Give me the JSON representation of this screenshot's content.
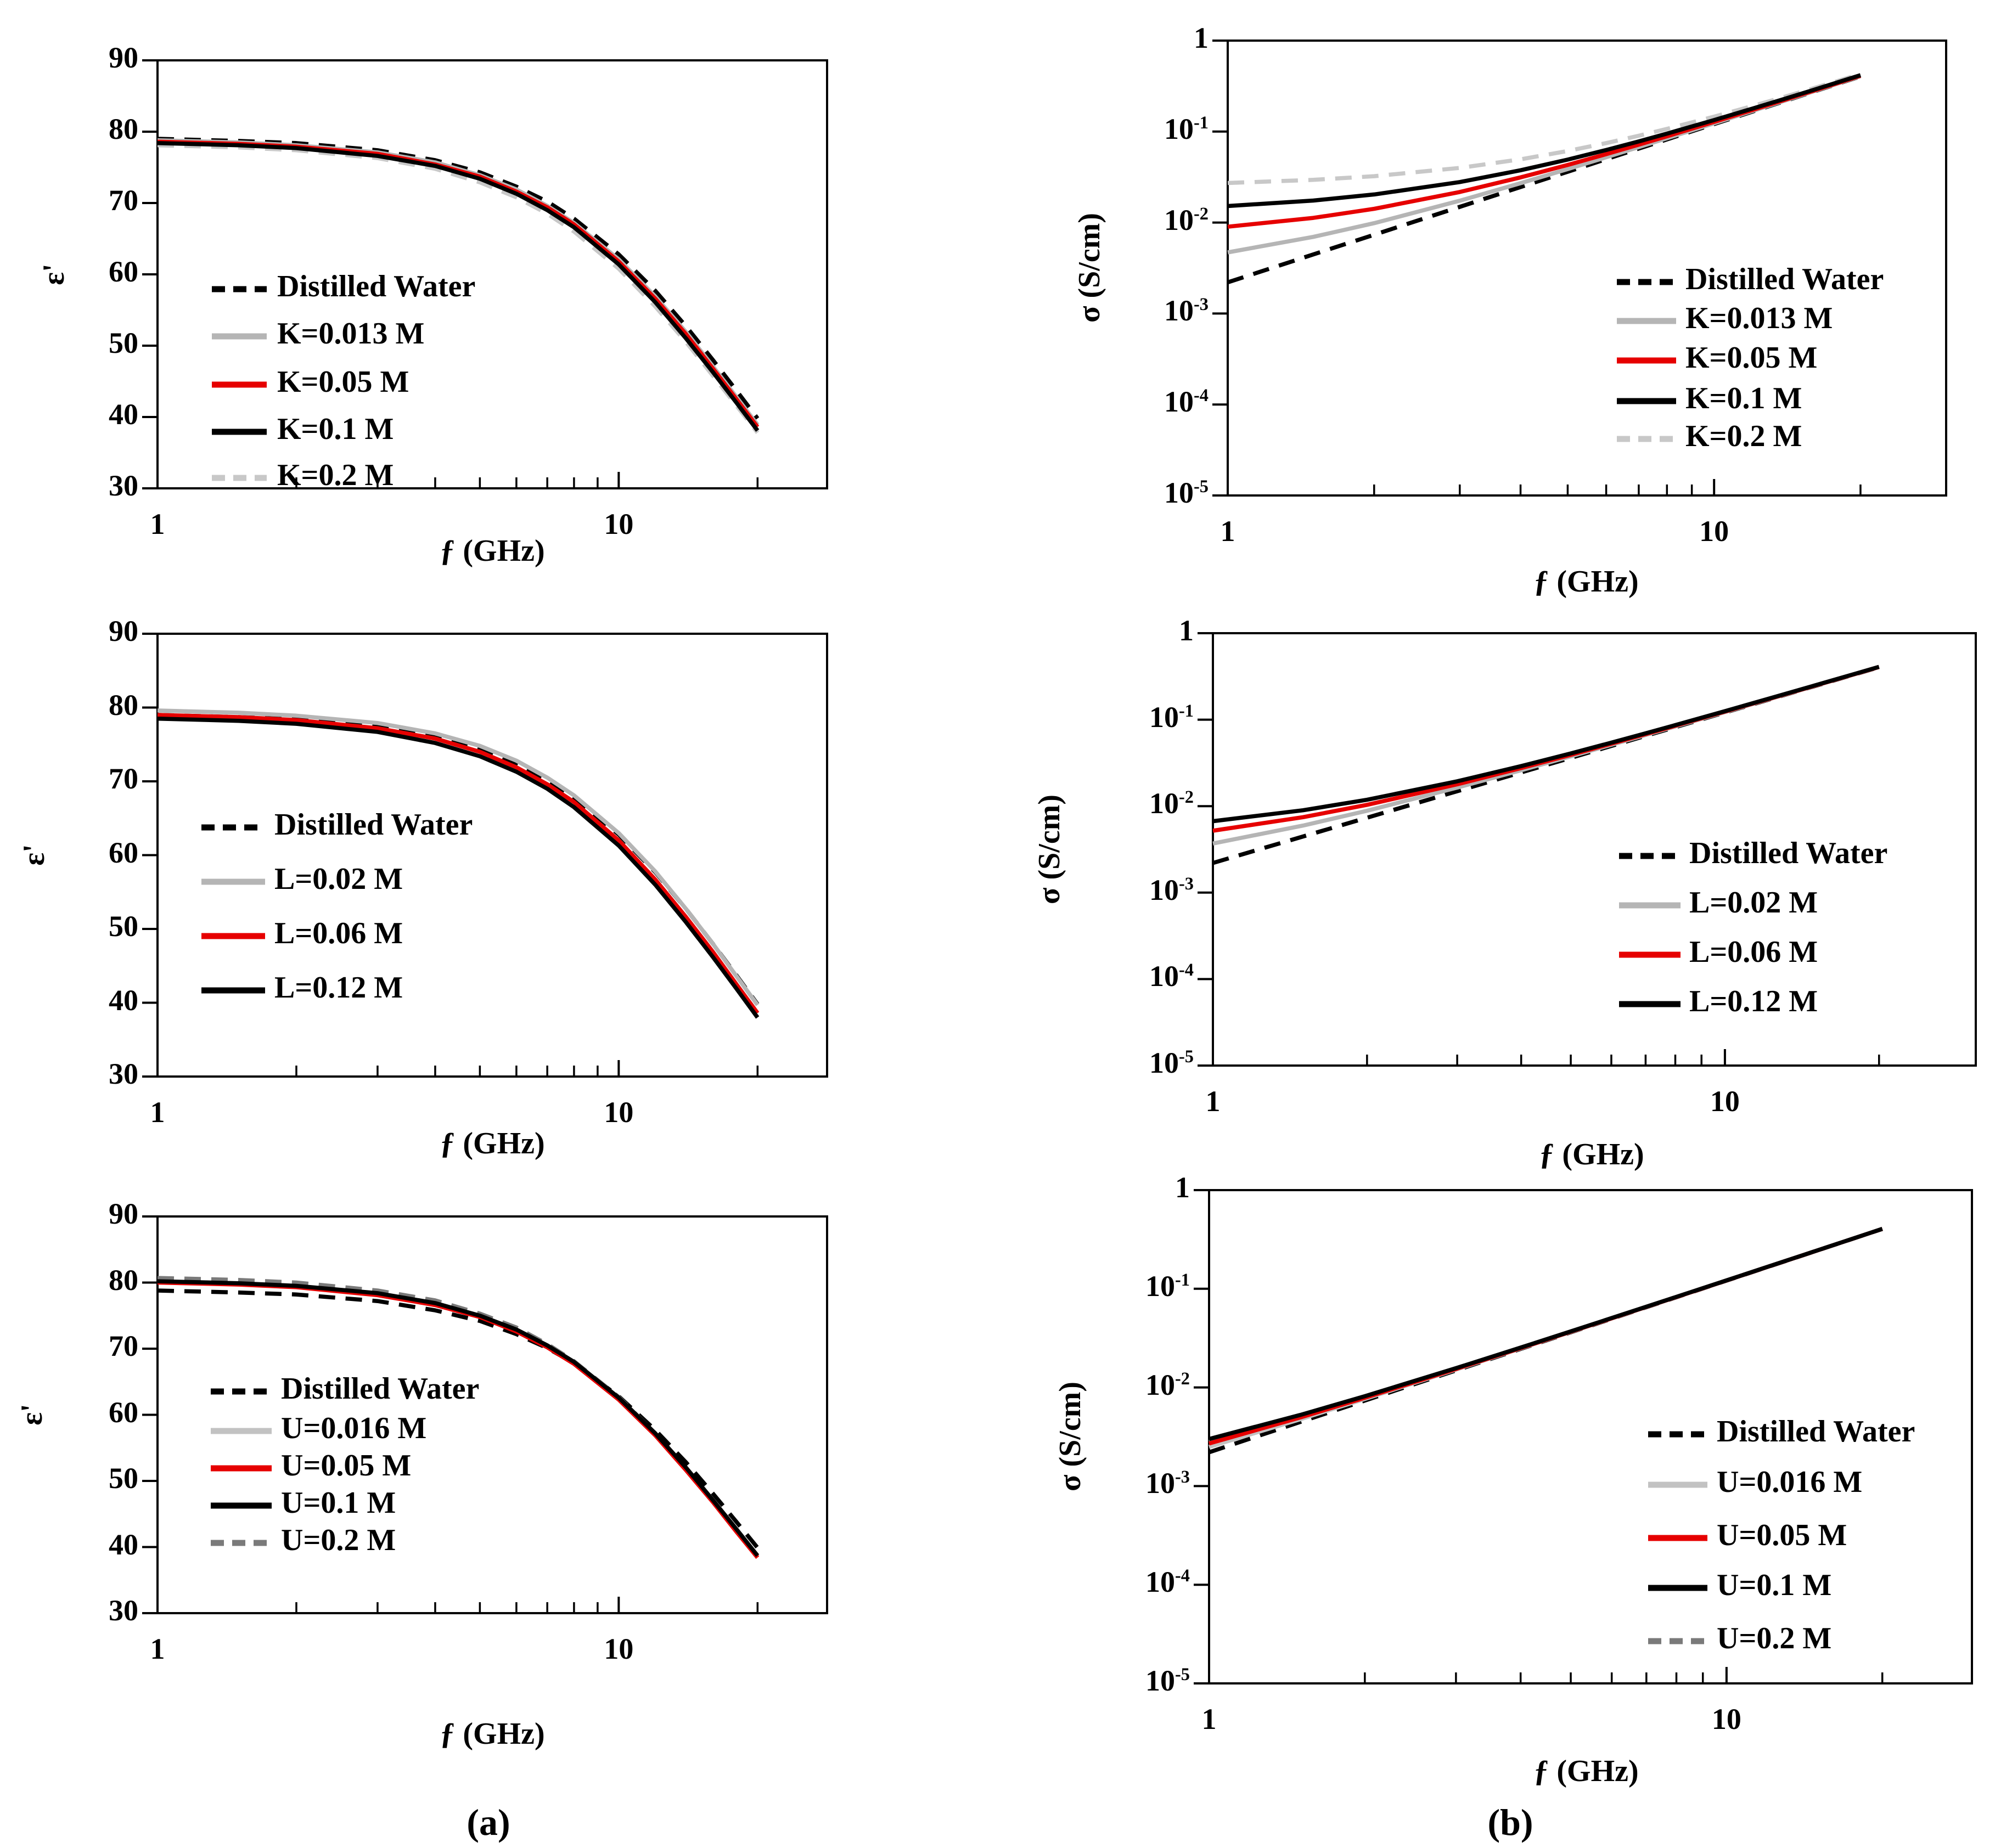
{
  "figure": {
    "panel_labels": {
      "a": "(a)",
      "b": "(b)"
    },
    "x_axis_label": "ƒ (GHz)",
    "permittivity_axis_label": "ε'",
    "conductivity_axis_label": "σ (S/cm)"
  },
  "colors": {
    "black": "#000000",
    "red": "#e60000",
    "light_gray": "#b5b5b5",
    "lighter_gray": "#c8c8c8",
    "dark_gray": "#7a7a7a",
    "background": "#ffffff"
  },
  "chart_data": [
    {
      "id": "a1",
      "type": "line",
      "panel": "a",
      "title": "",
      "xlabel": "ƒ (GHz)",
      "ylabel": "ε'",
      "x_scale": "log",
      "y_scale": "linear",
      "xlim": [
        1,
        28.3
      ],
      "ylim": [
        30,
        90
      ],
      "grid": false,
      "legend_position": "inside-left-middle",
      "x_tick_labels": [
        "1",
        "10"
      ],
      "x_ticks_labeled": [
        1,
        10
      ],
      "x_ticks_minor": [
        2,
        3,
        4,
        5,
        6,
        7,
        8,
        9,
        20
      ],
      "y_ticks": [
        "90",
        "80",
        "70",
        "60",
        "50",
        "40",
        "30"
      ],
      "y_tick_values": [
        90,
        80,
        70,
        60,
        50,
        40,
        30
      ],
      "x": [
        1,
        1.5,
        2,
        3,
        4,
        5,
        6,
        7,
        8,
        10,
        12,
        14,
        16,
        18,
        20
      ],
      "series": [
        {
          "name": "Distilled Water",
          "color": "#000000",
          "dash": "dashed",
          "values": [
            79.0,
            78.7,
            78.4,
            77.4,
            76.0,
            74.3,
            72.3,
            70.2,
            67.8,
            62.8,
            57.7,
            52.7,
            48.0,
            43.7,
            39.8
          ]
        },
        {
          "name": "K=0.013 M",
          "color": "#b5b5b5",
          "dash": "solid",
          "values": [
            78.8,
            78.5,
            78.1,
            77.1,
            75.7,
            73.9,
            71.9,
            69.6,
            67.2,
            62.1,
            56.9,
            51.9,
            47.1,
            42.8,
            38.9
          ]
        },
        {
          "name": "K=0.05 M",
          "color": "#e60000",
          "dash": "solid",
          "values": [
            78.6,
            78.3,
            77.9,
            76.9,
            75.4,
            73.7,
            71.6,
            69.4,
            67.0,
            61.8,
            56.6,
            51.6,
            46.8,
            42.5,
            38.6
          ]
        },
        {
          "name": "K=0.1 M",
          "color": "#000000",
          "dash": "solid",
          "values": [
            78.4,
            78.1,
            77.7,
            76.6,
            75.2,
            73.4,
            71.3,
            69.0,
            66.6,
            61.4,
            56.1,
            51.0,
            46.3,
            42.0,
            38.1
          ]
        },
        {
          "name": "K=0.2 M",
          "color": "#c8c8c8",
          "dash": "dashed",
          "values": [
            78.1,
            77.8,
            77.4,
            76.3,
            74.8,
            72.9,
            70.8,
            68.5,
            66.0,
            60.8,
            55.5,
            50.5,
            45.8,
            41.6,
            37.8
          ]
        }
      ]
    },
    {
      "id": "a2",
      "type": "line",
      "panel": "a",
      "title": "",
      "xlabel": "ƒ (GHz)",
      "ylabel": "ε'",
      "x_scale": "log",
      "y_scale": "linear",
      "xlim": [
        1,
        28.3
      ],
      "ylim": [
        30,
        90
      ],
      "grid": false,
      "legend_position": "inside-left-middle",
      "x_tick_labels": [
        "1",
        "10"
      ],
      "x_ticks_labeled": [
        1,
        10
      ],
      "x_ticks_minor": [
        2,
        3,
        4,
        5,
        6,
        7,
        8,
        9,
        20
      ],
      "y_ticks": [
        "90",
        "80",
        "70",
        "60",
        "50",
        "40",
        "30"
      ],
      "y_tick_values": [
        90,
        80,
        70,
        60,
        50,
        40,
        30
      ],
      "x": [
        1,
        1.5,
        2,
        3,
        4,
        5,
        6,
        7,
        8,
        10,
        12,
        14,
        16,
        18,
        20
      ],
      "series": [
        {
          "name": "Distilled Water",
          "color": "#000000",
          "dash": "dashed",
          "values": [
            79.0,
            78.7,
            78.4,
            77.4,
            76.0,
            74.3,
            72.3,
            70.2,
            67.8,
            62.8,
            57.7,
            52.7,
            48.0,
            43.7,
            39.8
          ]
        },
        {
          "name": "L=0.02 M",
          "color": "#b5b5b5",
          "dash": "solid",
          "values": [
            79.6,
            79.3,
            78.9,
            77.9,
            76.5,
            74.8,
            72.8,
            70.5,
            68.1,
            63.0,
            57.8,
            52.7,
            48.0,
            43.6,
            39.7
          ]
        },
        {
          "name": "L=0.06 M",
          "color": "#e60000",
          "dash": "solid",
          "values": [
            79.0,
            78.7,
            78.3,
            77.2,
            75.8,
            74.0,
            71.9,
            69.6,
            67.2,
            62.0,
            56.7,
            51.6,
            46.9,
            42.5,
            38.6
          ]
        },
        {
          "name": "L=0.12 M",
          "color": "#000000",
          "dash": "solid",
          "values": [
            78.5,
            78.2,
            77.8,
            76.7,
            75.2,
            73.4,
            71.3,
            69.0,
            66.5,
            61.3,
            56.0,
            50.9,
            46.2,
            41.9,
            38.0
          ]
        }
      ]
    },
    {
      "id": "a3",
      "type": "line",
      "panel": "a",
      "title": "",
      "xlabel": "ƒ (GHz)",
      "ylabel": "ε'",
      "x_scale": "log",
      "y_scale": "linear",
      "xlim": [
        1,
        28.3
      ],
      "ylim": [
        30,
        90
      ],
      "grid": false,
      "legend_position": "inside-left-middle",
      "x_tick_labels": [
        "1",
        "10"
      ],
      "x_ticks_labeled": [
        1,
        10
      ],
      "x_ticks_minor": [
        2,
        3,
        4,
        5,
        6,
        7,
        8,
        9,
        20
      ],
      "y_ticks": [
        "90",
        "80",
        "70",
        "60",
        "50",
        "40",
        "30"
      ],
      "y_tick_values": [
        90,
        80,
        70,
        60,
        50,
        40,
        30
      ],
      "x": [
        1,
        1.5,
        2,
        3,
        4,
        5,
        6,
        7,
        8,
        10,
        12,
        14,
        16,
        18,
        20
      ],
      "series": [
        {
          "name": "Distilled Water",
          "color": "#000000",
          "dash": "dashed",
          "values": [
            78.8,
            78.5,
            78.2,
            77.2,
            75.8,
            74.2,
            72.2,
            70.1,
            67.8,
            62.8,
            57.7,
            52.8,
            48.1,
            43.8,
            39.9
          ]
        },
        {
          "name": "U=0.016 M",
          "color": "#c2c2c2",
          "dash": "solid",
          "values": [
            80.1,
            79.8,
            79.4,
            78.2,
            76.7,
            74.9,
            72.7,
            70.3,
            67.8,
            62.4,
            57.0,
            51.7,
            46.9,
            42.4,
            38.5
          ]
        },
        {
          "name": "U=0.05 M",
          "color": "#e60000",
          "dash": "solid",
          "values": [
            80.0,
            79.7,
            79.3,
            78.1,
            76.6,
            74.8,
            72.6,
            70.2,
            67.7,
            62.3,
            56.9,
            51.6,
            46.8,
            42.3,
            38.4
          ]
        },
        {
          "name": "U=0.1 M",
          "color": "#000000",
          "dash": "solid",
          "values": [
            80.2,
            79.9,
            79.5,
            78.4,
            76.9,
            75.0,
            72.9,
            70.5,
            68.0,
            62.6,
            57.2,
            52.0,
            47.1,
            42.7,
            38.7
          ]
        },
        {
          "name": "U=0.2 M",
          "color": "#7a7a7a",
          "dash": "dashed",
          "values": [
            80.7,
            80.4,
            80.0,
            78.8,
            77.3,
            75.3,
            73.2,
            70.7,
            68.1,
            62.7,
            57.2,
            51.9,
            47.0,
            42.5,
            38.5
          ]
        }
      ]
    },
    {
      "id": "b1",
      "type": "line",
      "panel": "b",
      "title": "",
      "xlabel": "ƒ (GHz)",
      "ylabel": "σ (S/cm)",
      "x_scale": "log",
      "y_scale": "log",
      "xlim": [
        1,
        30
      ],
      "ylim": [
        1e-05,
        1
      ],
      "grid": false,
      "legend_position": "inside-right-middle",
      "x_tick_labels": [
        "1",
        "10"
      ],
      "x_ticks_labeled": [
        1,
        10
      ],
      "x_ticks_minor": [
        2,
        3,
        4,
        5,
        6,
        7,
        8,
        9,
        20
      ],
      "y_ticks": [
        {
          "base": "1",
          "exp": ""
        },
        {
          "base": "10",
          "exp": "-1"
        },
        {
          "base": "10",
          "exp": "-2"
        },
        {
          "base": "10",
          "exp": "-3"
        },
        {
          "base": "10",
          "exp": "-4"
        },
        {
          "base": "10",
          "exp": "-5"
        }
      ],
      "y_tick_values": [
        1,
        0.1,
        0.01,
        0.001,
        0.0001,
        1e-05
      ],
      "x": [
        1,
        1.5,
        2,
        3,
        4,
        5,
        6,
        7,
        8,
        10,
        12,
        14,
        16,
        18,
        20
      ],
      "series": [
        {
          "name": "Distilled Water",
          "color": "#000000",
          "dash": "dashed",
          "values": [
            0.0022,
            0.00446,
            0.00735,
            0.01488,
            0.02455,
            0.03619,
            0.0497,
            0.065,
            0.082,
            0.1209,
            0.1661,
            0.21712,
            0.274,
            0.33629,
            0.40394
          ]
        },
        {
          "name": "K=0.013 M",
          "color": "#b5b5b5",
          "dash": "solid",
          "values": [
            0.0047,
            0.00696,
            0.00985,
            0.01738,
            0.02705,
            0.03869,
            0.0522,
            0.0675,
            0.0845,
            0.1234,
            0.1686,
            0.21962,
            0.2765,
            0.33879,
            0.40644
          ]
        },
        {
          "name": "K=0.05 M",
          "color": "#e60000",
          "dash": "solid",
          "values": [
            0.009,
            0.01126,
            0.01415,
            0.02168,
            0.03135,
            0.04299,
            0.0565,
            0.0718,
            0.0888,
            0.1277,
            0.1729,
            0.22392,
            0.2808,
            0.34309,
            0.41074
          ]
        },
        {
          "name": "K=0.1 M",
          "color": "#000000",
          "dash": "solid",
          "values": [
            0.0152,
            0.01746,
            0.02035,
            0.02788,
            0.03755,
            0.04919,
            0.0627,
            0.078,
            0.095,
            0.1339,
            0.1791,
            0.23012,
            0.287,
            0.34929,
            0.41694
          ]
        },
        {
          "name": "K=0.2 M",
          "color": "#c8c8c8",
          "dash": "dashed",
          "values": [
            0.0272,
            0.02946,
            0.03235,
            0.03988,
            0.04955,
            0.06119,
            0.0747,
            0.09,
            0.107,
            0.1459,
            0.1911,
            0.24212,
            0.299,
            0.36129,
            0.42894
          ]
        }
      ]
    },
    {
      "id": "b2",
      "type": "line",
      "panel": "b",
      "title": "",
      "xlabel": "ƒ (GHz)",
      "ylabel": "σ (S/cm)",
      "x_scale": "log",
      "y_scale": "log",
      "xlim": [
        1,
        30.9
      ],
      "ylim": [
        1e-05,
        1
      ],
      "grid": false,
      "legend_position": "inside-right-middle",
      "x_tick_labels": [
        "1",
        "10"
      ],
      "x_ticks_labeled": [
        1,
        10
      ],
      "x_ticks_minor": [
        2,
        3,
        4,
        5,
        6,
        7,
        8,
        9,
        20
      ],
      "y_ticks": [
        {
          "base": "1",
          "exp": ""
        },
        {
          "base": "10",
          "exp": "-1"
        },
        {
          "base": "10",
          "exp": "-2"
        },
        {
          "base": "10",
          "exp": "-3"
        },
        {
          "base": "10",
          "exp": "-4"
        },
        {
          "base": "10",
          "exp": "-5"
        }
      ],
      "y_tick_values": [
        1,
        0.1,
        0.01,
        0.001,
        0.0001,
        1e-05
      ],
      "x": [
        1,
        1.5,
        2,
        3,
        4,
        5,
        6,
        7,
        8,
        10,
        12,
        14,
        16,
        18,
        20
      ],
      "series": [
        {
          "name": "Distilled Water",
          "color": "#000000",
          "dash": "dashed",
          "values": [
            0.0022,
            0.00446,
            0.00735,
            0.01488,
            0.02455,
            0.03619,
            0.0497,
            0.065,
            0.082,
            0.1209,
            0.1661,
            0.21712,
            0.274,
            0.33629,
            0.40394
          ]
        },
        {
          "name": "L=0.02 M",
          "color": "#b5b5b5",
          "dash": "solid",
          "values": [
            0.0037,
            0.00596,
            0.00885,
            0.01638,
            0.02605,
            0.03769,
            0.0512,
            0.0665,
            0.0835,
            0.1224,
            0.1676,
            0.21862,
            0.2755,
            0.33779,
            0.40544
          ]
        },
        {
          "name": "L=0.06 M",
          "color": "#e60000",
          "dash": "solid",
          "values": [
            0.0052,
            0.00746,
            0.01035,
            0.01788,
            0.02755,
            0.03919,
            0.0527,
            0.068,
            0.085,
            0.1239,
            0.1691,
            0.22012,
            0.277,
            0.33929,
            0.40694
          ]
        },
        {
          "name": "L=0.12 M",
          "color": "#000000",
          "dash": "solid",
          "values": [
            0.0067,
            0.00896,
            0.01185,
            0.01938,
            0.02905,
            0.04069,
            0.0542,
            0.0695,
            0.0865,
            0.1254,
            0.1706,
            0.22162,
            0.2785,
            0.34079,
            0.40844
          ]
        }
      ]
    },
    {
      "id": "b3",
      "type": "line",
      "panel": "b",
      "title": "",
      "xlabel": "ƒ (GHz)",
      "ylabel": "σ (S/cm)",
      "x_scale": "log",
      "y_scale": "log",
      "xlim": [
        1,
        29.8
      ],
      "ylim": [
        1e-05,
        1
      ],
      "grid": false,
      "legend_position": "inside-right-middle",
      "x_tick_labels": [
        "1",
        "10"
      ],
      "x_ticks_labeled": [
        1,
        10
      ],
      "x_ticks_minor": [
        2,
        3,
        4,
        5,
        6,
        7,
        8,
        9,
        20
      ],
      "y_ticks": [
        {
          "base": "1",
          "exp": ""
        },
        {
          "base": "10",
          "exp": "-1"
        },
        {
          "base": "10",
          "exp": "-2"
        },
        {
          "base": "10",
          "exp": "-3"
        },
        {
          "base": "10",
          "exp": "-4"
        },
        {
          "base": "10",
          "exp": "-5"
        }
      ],
      "y_tick_values": [
        1,
        0.1,
        0.01,
        0.001,
        0.0001,
        1e-05
      ],
      "x": [
        1,
        1.5,
        2,
        3,
        4,
        5,
        6,
        7,
        8,
        10,
        12,
        14,
        16,
        18,
        20
      ],
      "series": [
        {
          "name": "Distilled Water",
          "color": "#000000",
          "dash": "dashed",
          "values": [
            0.0022,
            0.00446,
            0.00735,
            0.01488,
            0.02455,
            0.03619,
            0.0497,
            0.065,
            0.082,
            0.1209,
            0.1661,
            0.21712,
            0.274,
            0.33629,
            0.40394
          ]
        },
        {
          "name": "U=0.016 M",
          "color": "#c2c2c2",
          "dash": "solid",
          "values": [
            0.0025,
            0.00476,
            0.00765,
            0.01518,
            0.02485,
            0.03649,
            0.05,
            0.0653,
            0.0823,
            0.1212,
            0.1664,
            0.21742,
            0.2743,
            0.33659,
            0.40424
          ]
        },
        {
          "name": "U=0.05 M",
          "color": "#e60000",
          "dash": "solid",
          "values": [
            0.0027,
            0.00496,
            0.00785,
            0.01538,
            0.02505,
            0.03669,
            0.0502,
            0.0655,
            0.0825,
            0.1214,
            0.1666,
            0.21762,
            0.2745,
            0.33679,
            0.40444
          ]
        },
        {
          "name": "U=0.1 M",
          "color": "#000000",
          "dash": "solid",
          "values": [
            0.003,
            0.00526,
            0.00815,
            0.01568,
            0.02535,
            0.03699,
            0.0505,
            0.0658,
            0.0828,
            0.1217,
            0.1669,
            0.21792,
            0.2748,
            0.33709,
            0.40474
          ]
        },
        {
          "name": "U=0.2 M",
          "color": "#7a7a7a",
          "dash": "dashed",
          "values": [
            0.0028,
            0.00506,
            0.00795,
            0.01548,
            0.02515,
            0.03679,
            0.0503,
            0.0656,
            0.0826,
            0.1215,
            0.1667,
            0.21772,
            0.2746,
            0.33689,
            0.40454
          ]
        }
      ]
    }
  ]
}
